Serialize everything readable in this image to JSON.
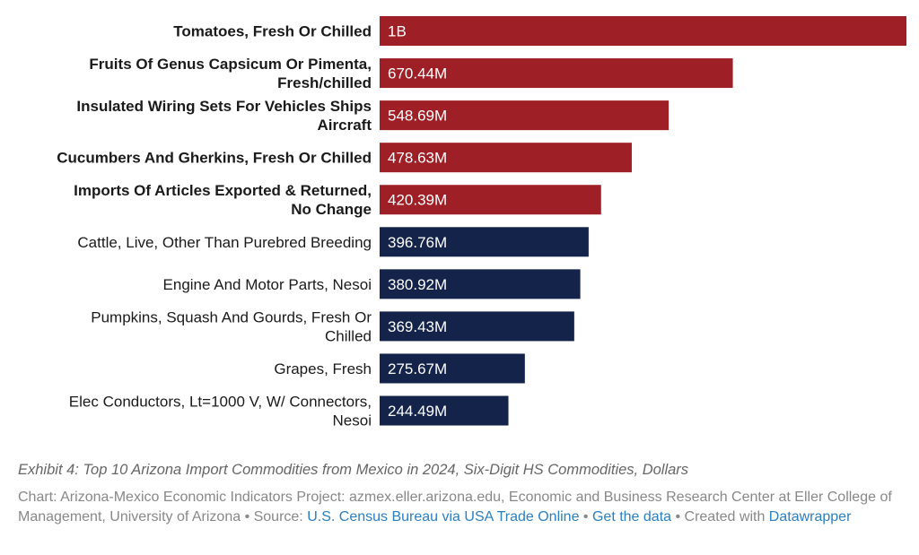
{
  "chart_data": {
    "type": "bar",
    "orientation": "horizontal",
    "categories": [
      [
        "Tomatoes, Fresh Or Chilled"
      ],
      [
        "Fruits Of Genus Capsicum Or Pimenta,",
        "Fresh/chilled"
      ],
      [
        "Insulated Wiring Sets For Vehicles Ships",
        "Aircraft"
      ],
      [
        "Cucumbers And Gherkins, Fresh Or Chilled"
      ],
      [
        "Imports Of Articles Exported & Returned,",
        "No Change"
      ],
      [
        "Cattle, Live, Other Than Purebred Breeding"
      ],
      [
        "Engine And Motor Parts, Nesoi"
      ],
      [
        "Pumpkins, Squash And Gourds, Fresh Or",
        "Chilled"
      ],
      [
        "Grapes, Fresh"
      ],
      [
        "Elec Conductors, Lt=1000 V, W/ Connectors,",
        "Nesoi"
      ]
    ],
    "values": [
      1000000000,
      670440000,
      548690000,
      478630000,
      420390000,
      396760000,
      380920000,
      369430000,
      275670000,
      244490000
    ],
    "value_labels": [
      "1B",
      "670.44M",
      "548.69M",
      "478.63M",
      "420.39M",
      "396.76M",
      "380.92M",
      "369.43M",
      "275.67M",
      "244.49M"
    ],
    "highlighted": [
      true,
      true,
      true,
      true,
      true,
      false,
      false,
      false,
      false,
      false
    ],
    "colors": {
      "highlight": "#9e1f25",
      "default": "#14234a"
    },
    "xlim": [
      0,
      1000000000
    ],
    "grid": false
  },
  "caption": "Exhibit 4: Top 10 Arizona Import Commodities from Mexico in 2024, Six-Digit HS Commodities, Dollars",
  "credits": {
    "prefix": "Chart: Arizona-Mexico Economic Indicators Project: azmex.eller.arizona.edu, Economic and Business Research Center at Eller College of Management, University of Arizona • Source: ",
    "source_link": "U.S. Census Bureau via USA Trade Online",
    "sep1": " • ",
    "data_link": "Get the data",
    "sep2": " • Created with ",
    "tool_link": "Datawrapper"
  }
}
